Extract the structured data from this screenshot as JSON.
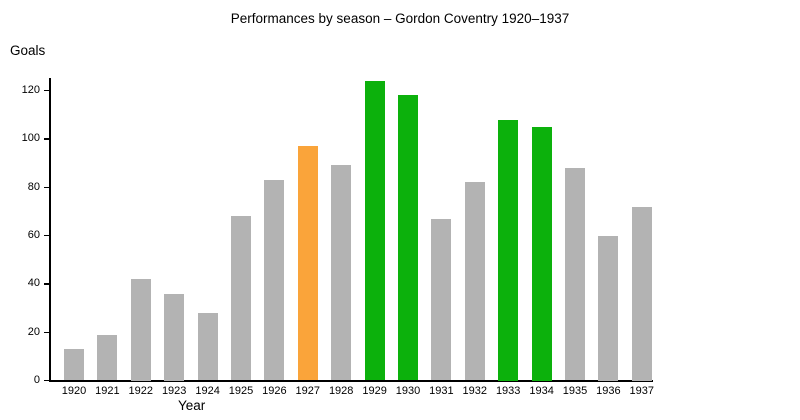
{
  "chart_data": {
    "type": "bar",
    "title": "Performances by season – Gordon Coventry 1920–1937",
    "xlabel": "Year",
    "ylabel": "Goals",
    "categories": [
      "1920",
      "1921",
      "1922",
      "1923",
      "1924",
      "1925",
      "1926",
      "1927",
      "1928",
      "1929",
      "1930",
      "1931",
      "1932",
      "1933",
      "1934",
      "1935",
      "1936",
      "1937"
    ],
    "values": [
      13,
      19,
      42,
      36,
      28,
      68,
      83,
      97,
      89,
      124,
      118,
      67,
      82,
      108,
      105,
      88,
      60,
      72
    ],
    "bar_color_roles": [
      "gray",
      "gray",
      "gray",
      "gray",
      "gray",
      "gray",
      "gray",
      "orange",
      "gray",
      "green",
      "green",
      "gray",
      "gray",
      "green",
      "green",
      "gray",
      "gray",
      "gray"
    ],
    "palette": {
      "gray": "#b3b3b3",
      "orange": "#faa43a",
      "green": "#0cb10c"
    },
    "axis_color": "#000000",
    "yticks": [
      0,
      20,
      40,
      60,
      80,
      100,
      120
    ],
    "ylim": [
      0,
      130
    ],
    "grid": false,
    "legend": "none"
  }
}
